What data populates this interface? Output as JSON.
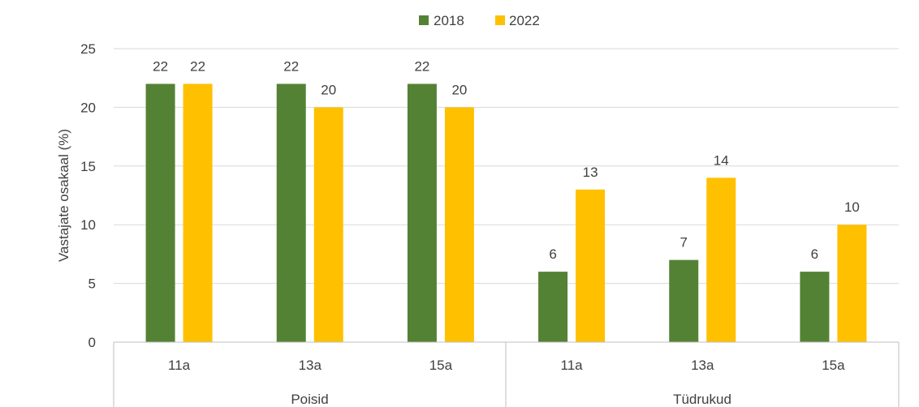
{
  "chart_data": {
    "type": "bar",
    "title": "",
    "xlabel": "",
    "ylabel": "Vastajate osakaal (%)",
    "ylim": [
      0,
      25
    ],
    "yticks": [
      "0",
      "5",
      "10",
      "15",
      "20",
      "25"
    ],
    "grid": true,
    "legend_position": "top",
    "groups": [
      {
        "label": "Poisid",
        "categories": [
          "11a",
          "13a",
          "15a"
        ]
      },
      {
        "label": "Tüdrukud",
        "categories": [
          "11a",
          "13a",
          "15a"
        ]
      }
    ],
    "categories": [
      "11a",
      "13a",
      "15a",
      "11a",
      "13a",
      "15a"
    ],
    "series": [
      {
        "name": "2018",
        "color": "#548235",
        "values": [
          22,
          22,
          22,
          6,
          7,
          6
        ]
      },
      {
        "name": "2022",
        "color": "#FFC000",
        "values": [
          22,
          20,
          20,
          13,
          14,
          10
        ]
      }
    ]
  }
}
